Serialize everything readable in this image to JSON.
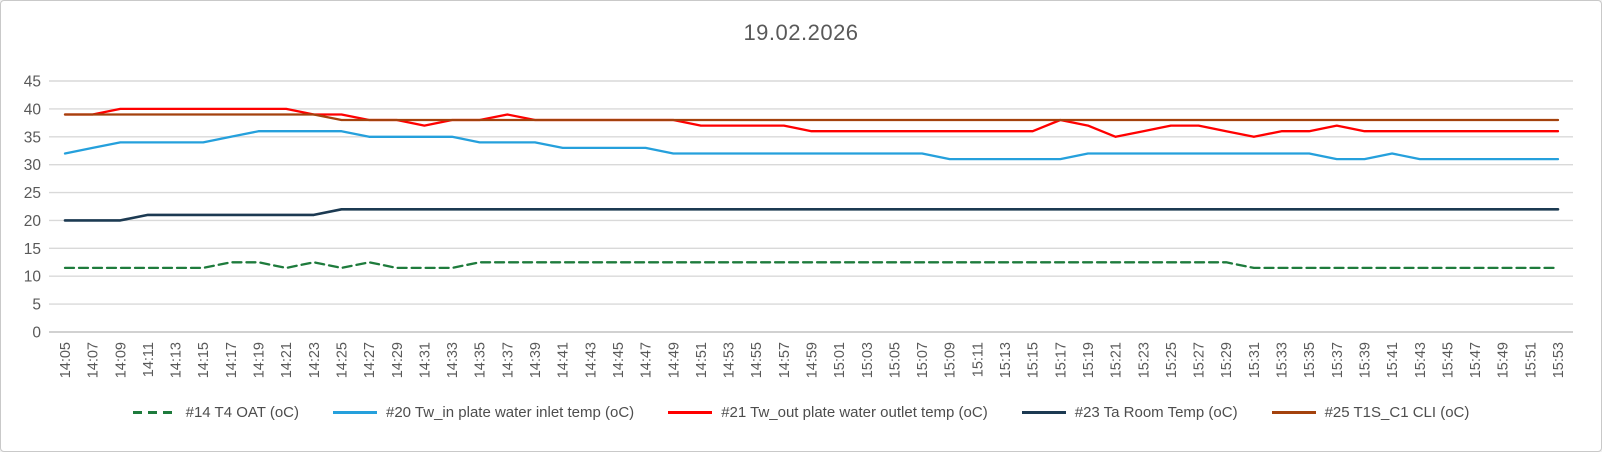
{
  "title": "19.02.2026",
  "colors": {
    "background": "#ffffff",
    "frame_border": "#c9c9c9",
    "gridline": "#d9d9d9",
    "axis_line": "#c2c2c2",
    "tick_text": "#595959",
    "legend_text": "#4d4d4d",
    "series_oat": "#1e7b3c",
    "series_tw_in": "#25a0dc",
    "series_tw_out": "#ff0000",
    "series_ta_room": "#1c3a52",
    "series_t1s_c1": "#a4420d"
  },
  "chart_data": {
    "type": "line",
    "title": "19.02.2026",
    "xlabel": "",
    "ylabel": "",
    "ylim": [
      0,
      45
    ],
    "ytick_step": 5,
    "grid": "horizontal",
    "legend_position": "bottom",
    "x_tick_labels": [
      "14:05",
      "14:07",
      "14:09",
      "14:11",
      "14:13",
      "14:15",
      "14:17",
      "14:19",
      "14:21",
      "14:23",
      "14:25",
      "14:27",
      "14:29",
      "14:31",
      "14:33",
      "14:35",
      "14:37",
      "14:39",
      "14:41",
      "14:43",
      "14:45",
      "14:47",
      "14:49",
      "14:51",
      "14:53",
      "14:55",
      "14:57",
      "14:59",
      "15:01",
      "15:03",
      "15:05",
      "15:07",
      "15:09",
      "15:11",
      "15:13",
      "15:15",
      "15:17",
      "15:19",
      "15:21",
      "15:23",
      "15:25",
      "15:27",
      "15:29",
      "15:31",
      "15:33",
      "15:35",
      "15:37",
      "15:39",
      "15:41",
      "15:43",
      "15:45",
      "15:47",
      "15:49",
      "15:51",
      "15:53"
    ],
    "series": [
      {
        "id": "oat",
        "name": "#14 T4 OAT (oC)",
        "color": "#1e7b3c",
        "dash": "dashed",
        "values": [
          11.5,
          11.5,
          11.5,
          11.5,
          11.5,
          11.5,
          12.5,
          12.5,
          11.5,
          12.5,
          11.5,
          12.5,
          11.5,
          11.5,
          11.5,
          12.5,
          12.5,
          12.5,
          12.5,
          12.5,
          12.5,
          12.5,
          12.5,
          12.5,
          12.5,
          12.5,
          12.5,
          12.5,
          12.5,
          12.5,
          12.5,
          12.5,
          12.5,
          12.5,
          12.5,
          12.5,
          12.5,
          12.5,
          12.5,
          12.5,
          12.5,
          12.5,
          12.5,
          11.5,
          11.5,
          11.5,
          11.5,
          11.5,
          11.5,
          11.5,
          11.5,
          11.5,
          11.5,
          11.5,
          11.5
        ]
      },
      {
        "id": "tw-in",
        "name": "#20 Tw_in plate water inlet temp (oC)",
        "color": "#25a0dc",
        "dash": "solid",
        "values": [
          32,
          33,
          34,
          34,
          34,
          34,
          35,
          36,
          36,
          36,
          36,
          35,
          35,
          35,
          35,
          34,
          34,
          34,
          33,
          33,
          33,
          33,
          32,
          32,
          32,
          32,
          32,
          32,
          32,
          32,
          32,
          32,
          31,
          31,
          31,
          31,
          31,
          32,
          32,
          32,
          32,
          32,
          32,
          32,
          32,
          32,
          31,
          31,
          32,
          31,
          31,
          31,
          31,
          31,
          31
        ]
      },
      {
        "id": "tw-out",
        "name": "#21 Tw_out plate water outlet temp (oC)",
        "color": "#ff0000",
        "dash": "solid",
        "values": [
          39,
          39,
          40,
          40,
          40,
          40,
          40,
          40,
          40,
          39,
          39,
          38,
          38,
          37,
          38,
          38,
          39,
          38,
          38,
          38,
          38,
          38,
          38,
          37,
          37,
          37,
          37,
          36,
          36,
          36,
          36,
          36,
          36,
          36,
          36,
          36,
          38,
          37,
          35,
          36,
          37,
          37,
          36,
          35,
          36,
          36,
          37,
          36,
          36,
          36,
          36,
          36,
          36,
          36,
          36
        ]
      },
      {
        "id": "ta-room",
        "name": "#23 Ta Room Temp (oC)",
        "color": "#1c3a52",
        "dash": "solid",
        "values": [
          20,
          20,
          20,
          21,
          21,
          21,
          21,
          21,
          21,
          21,
          22,
          22,
          22,
          22,
          22,
          22,
          22,
          22,
          22,
          22,
          22,
          22,
          22,
          22,
          22,
          22,
          22,
          22,
          22,
          22,
          22,
          22,
          22,
          22,
          22,
          22,
          22,
          22,
          22,
          22,
          22,
          22,
          22,
          22,
          22,
          22,
          22,
          22,
          22,
          22,
          22,
          22,
          22,
          22,
          22
        ]
      },
      {
        "id": "t1s-c1",
        "name": "#25 T1S_C1 CLI (oC)",
        "color": "#a4420d",
        "dash": "solid",
        "values": [
          39,
          39,
          39,
          39,
          39,
          39,
          39,
          39,
          39,
          39,
          38,
          38,
          38,
          38,
          38,
          38,
          38,
          38,
          38,
          38,
          38,
          38,
          38,
          38,
          38,
          38,
          38,
          38,
          38,
          38,
          38,
          38,
          38,
          38,
          38,
          38,
          38,
          38,
          38,
          38,
          38,
          38,
          38,
          38,
          38,
          38,
          38,
          38,
          38,
          38,
          38,
          38,
          38,
          38,
          38
        ]
      }
    ]
  }
}
